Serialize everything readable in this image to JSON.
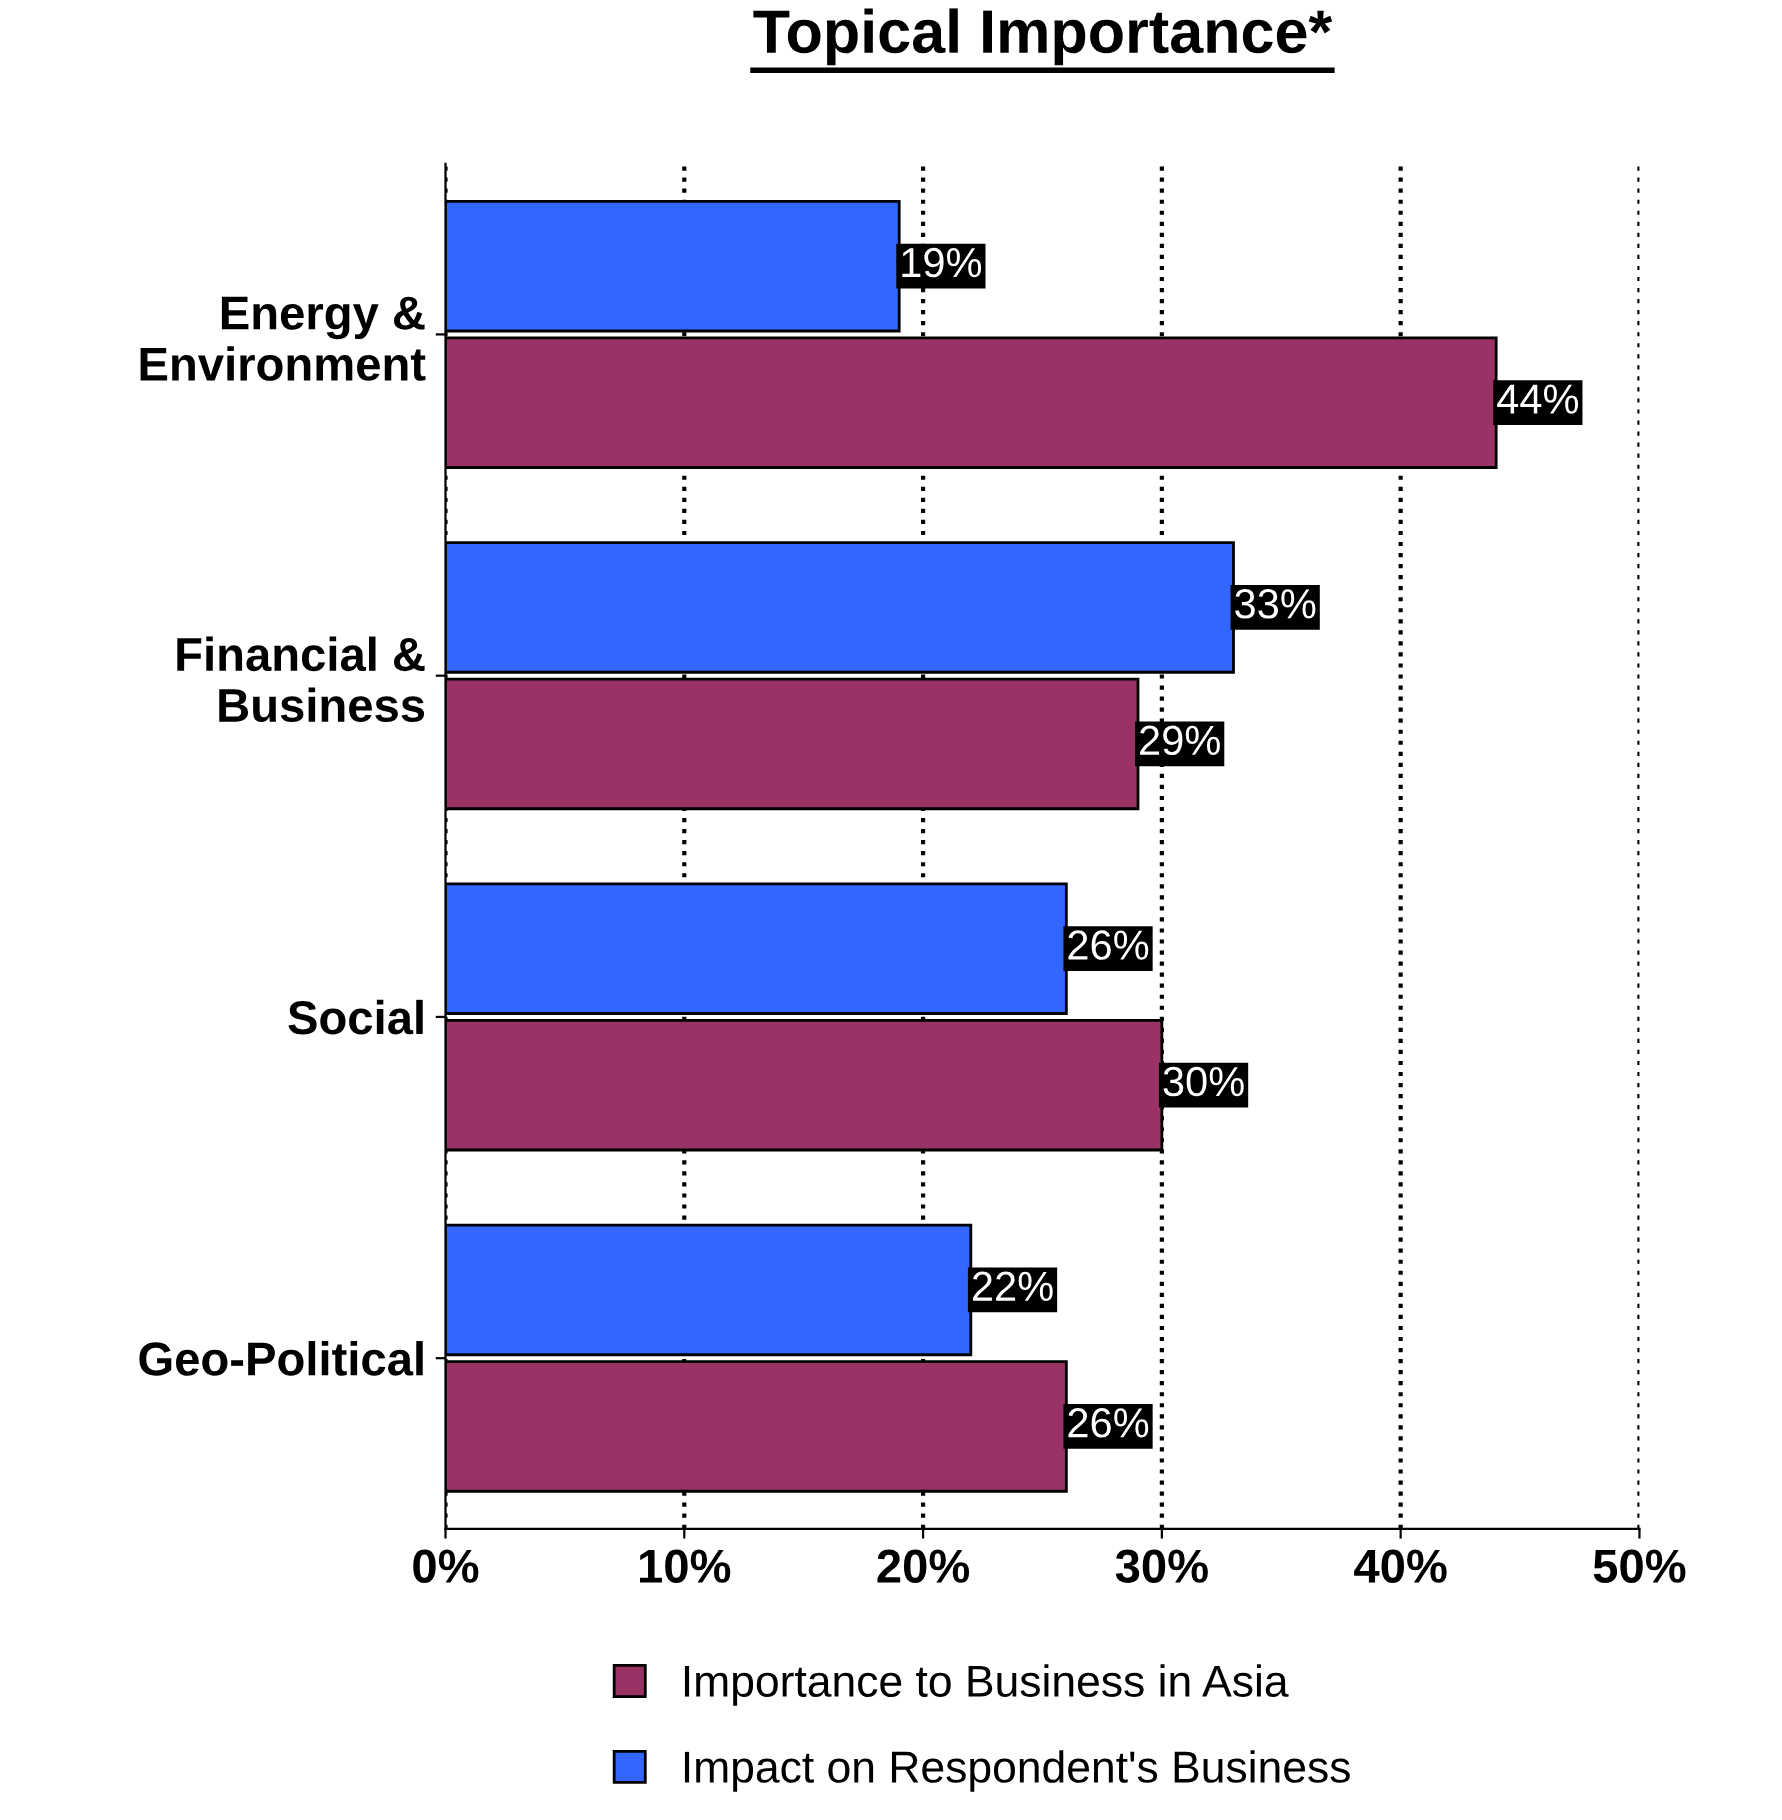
{
  "chart_data": {
    "type": "bar",
    "orientation": "horizontal",
    "title": "Topical Importance*",
    "categories": [
      "Energy &\nEnvironment",
      "Financial &\nBusiness",
      "Social",
      "Geo-Political"
    ],
    "series": [
      {
        "name": "Importance to Business in Asia",
        "color": "#993366",
        "values": [
          44,
          29,
          30,
          26
        ],
        "value_labels": [
          "44%",
          "29%",
          "30%",
          "26%"
        ]
      },
      {
        "name": "Impact on Respondent's Business",
        "color": "#3366ff",
        "values": [
          19,
          33,
          26,
          22
        ],
        "value_labels": [
          "19%",
          "33%",
          "26%",
          "22%"
        ]
      }
    ],
    "xlim": [
      0,
      50
    ],
    "xticks": [
      {
        "value": 0,
        "label": "0%"
      },
      {
        "value": 10,
        "label": "10%"
      },
      {
        "value": 20,
        "label": "20%"
      },
      {
        "value": 30,
        "label": "30%"
      },
      {
        "value": 40,
        "label": "40%"
      },
      {
        "value": 50,
        "label": "50%"
      }
    ],
    "grid": "x",
    "legend": "bottom"
  }
}
